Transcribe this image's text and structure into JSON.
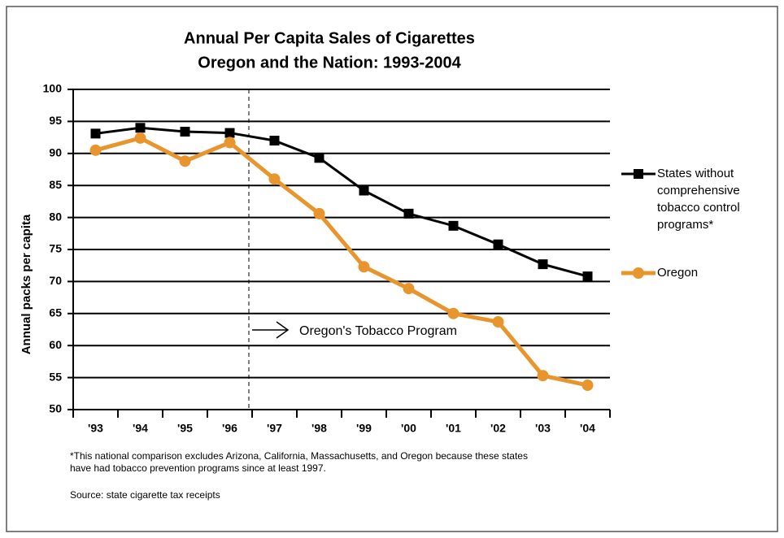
{
  "chart_data": {
    "type": "line",
    "title": "Annual Per Capita Sales of Cigarettes",
    "subtitle": "Oregon and the Nation: 1993-2004",
    "ylabel": "Annual packs per capita",
    "categories": [
      "'93",
      "'94",
      "'95",
      "'96",
      "'97",
      "'98",
      "'99",
      "'00",
      "'01",
      "'02",
      "'03",
      "'04"
    ],
    "series": [
      {
        "name": "States without comprehensive tobacco control programs*",
        "color": "#000000",
        "marker": "square",
        "values": [
          93.1,
          94.0,
          93.4,
          93.2,
          92.0,
          89.3,
          84.2,
          80.6,
          78.7,
          75.8,
          72.7,
          70.8
        ]
      },
      {
        "name": "Oregon",
        "color": "#e8952e",
        "marker": "circle",
        "values": [
          90.5,
          92.4,
          88.8,
          91.7,
          86.0,
          80.6,
          72.3,
          68.9,
          65.0,
          63.7,
          55.3,
          53.8
        ]
      }
    ],
    "ylim": [
      50,
      100
    ],
    "yticks": [
      50,
      55,
      60,
      65,
      70,
      75,
      80,
      85,
      90,
      95,
      100
    ],
    "grid": true,
    "legend": "right",
    "annotation": "Oregon's Tobacco Program",
    "footnote": [
      "*This national comparison excludes Arizona, California, Massachusetts, and Oregon because these states",
      "have had tobacco prevention programs since at least 1997."
    ],
    "source": "Source: state cigarette tax receipts"
  }
}
